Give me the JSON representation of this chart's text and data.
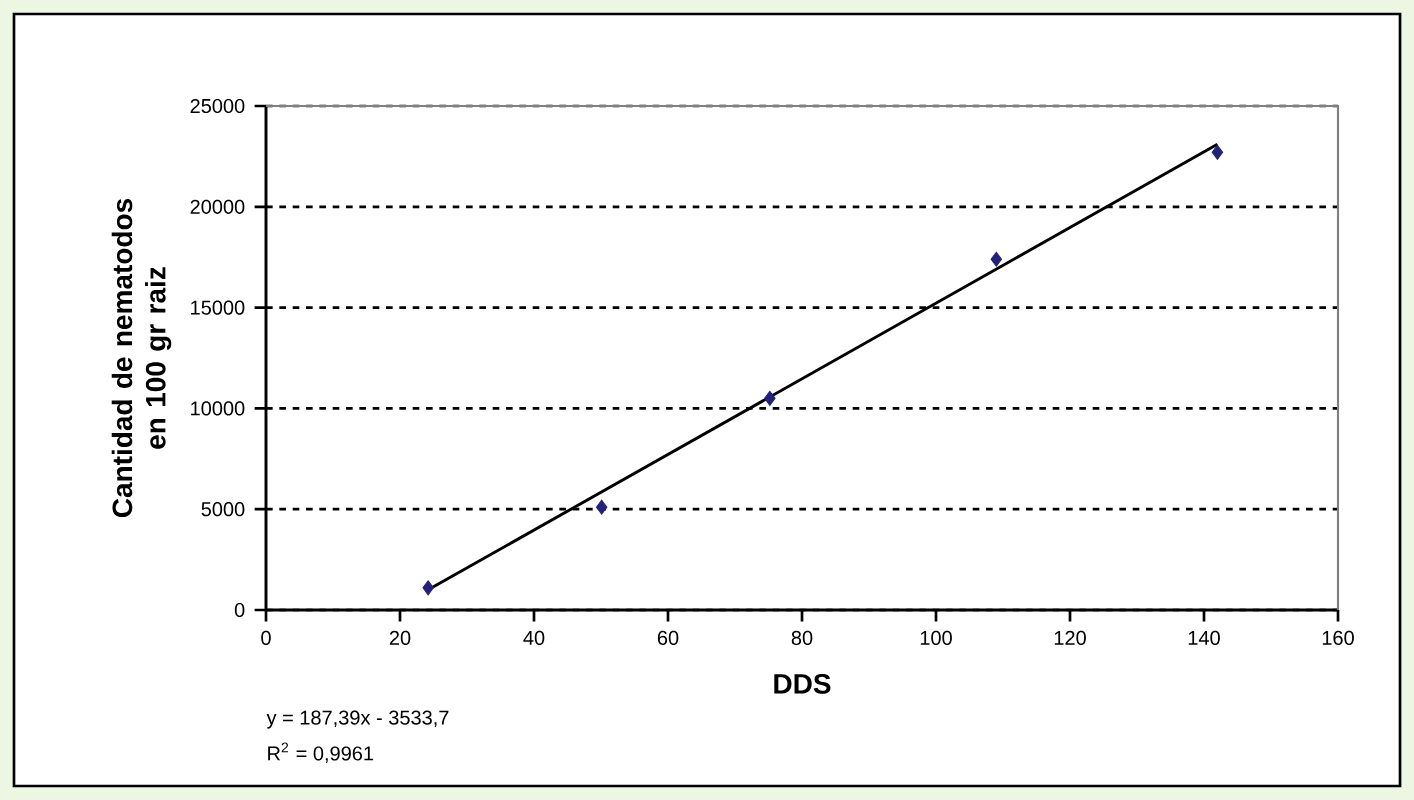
{
  "chart_data": {
    "type": "scatter",
    "xlabel": "DDS",
    "ylabel": "Cantidad de nematodos en 100 gr raiz",
    "series": [
      {
        "color": "#22227a",
        "marker": "diamond",
        "x": [
          24.2,
          50.1,
          75.2,
          109,
          142
        ],
        "values": [
          1100,
          5100,
          10500,
          17400,
          22700
        ]
      },
      {
        "type": "line",
        "color": "#000000",
        "marker": "none",
        "line_style": "solid",
        "x": [
          24.2,
          142
        ],
        "values": [
          1000,
          23100
        ]
      }
    ],
    "xlim": [
      0,
      160
    ],
    "xticks": [
      0,
      20,
      40,
      60,
      80,
      100,
      120,
      140,
      160
    ],
    "ylim": [
      0,
      25000
    ],
    "yticks": [
      0,
      5000,
      10000,
      15000,
      20000,
      25000
    ],
    "grid": "y",
    "annotations": [
      "y = 187,39x - 3533,7",
      "R$^{2}$ = 0,9961"
    ]
  }
}
